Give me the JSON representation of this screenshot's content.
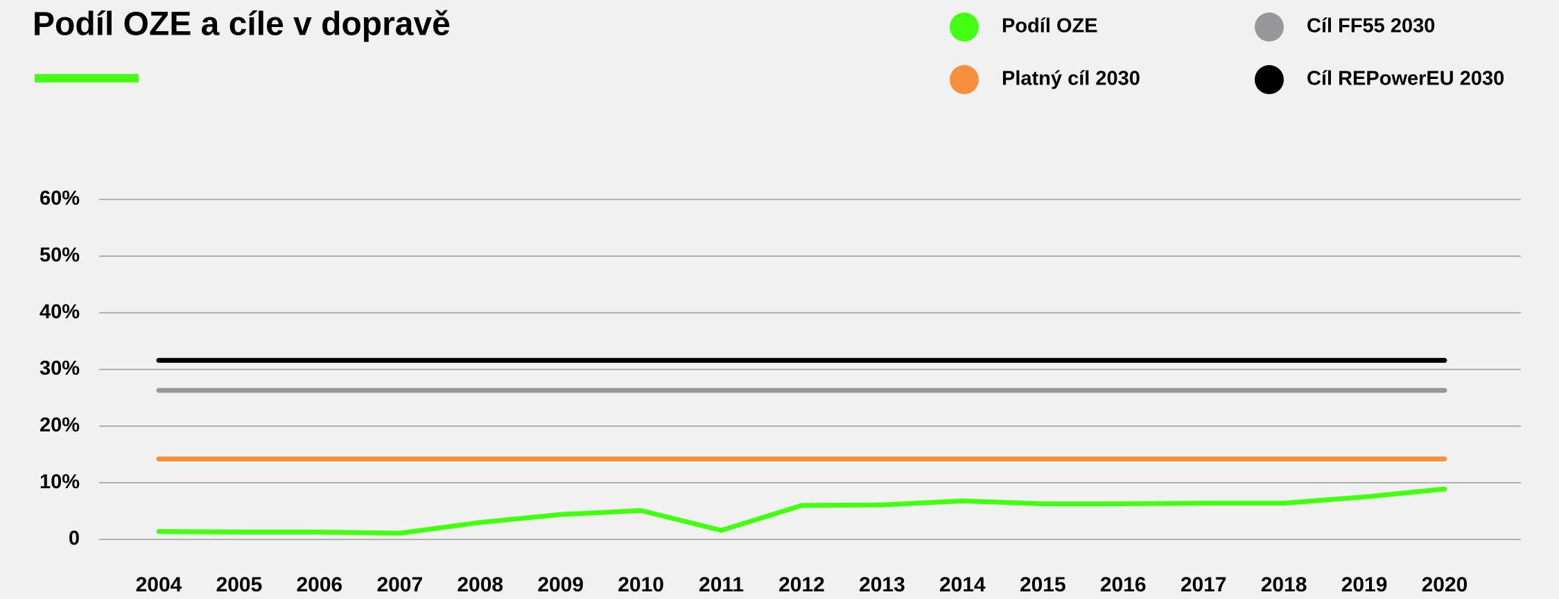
{
  "chart_data": {
    "type": "line",
    "title": "Podíl OZE a cíle v dopravě",
    "categories": [
      "2004",
      "2005",
      "2006",
      "2007",
      "2008",
      "2009",
      "2010",
      "2011",
      "2012",
      "2013",
      "2014",
      "2015",
      "2016",
      "2017",
      "2018",
      "2019",
      "2020"
    ],
    "series": [
      {
        "name": "Podíl OZE",
        "color": "#44ff12",
        "values": [
          1.4,
          1.3,
          1.3,
          1.1,
          3.0,
          4.4,
          5.1,
          1.6,
          6.0,
          6.1,
          6.8,
          6.3,
          6.3,
          6.4,
          6.4,
          7.5,
          8.9
        ]
      },
      {
        "name": "Platný cíl 2030",
        "color": "#f58f3c",
        "values": [
          14.2,
          14.2,
          14.2,
          14.2,
          14.2,
          14.2,
          14.2,
          14.2,
          14.2,
          14.2,
          14.2,
          14.2,
          14.2,
          14.2,
          14.2,
          14.2,
          14.2
        ]
      },
      {
        "name": "Cíl FF55 2030",
        "color": "#98989a",
        "values": [
          26.3,
          26.3,
          26.3,
          26.3,
          26.3,
          26.3,
          26.3,
          26.3,
          26.3,
          26.3,
          26.3,
          26.3,
          26.3,
          26.3,
          26.3,
          26.3,
          26.3
        ]
      },
      {
        "name": "Cíl REPowerEU 2030",
        "color": "#000000",
        "values": [
          31.6,
          31.6,
          31.6,
          31.6,
          31.6,
          31.6,
          31.6,
          31.6,
          31.6,
          31.6,
          31.6,
          31.6,
          31.6,
          31.6,
          31.6,
          31.6,
          31.6
        ]
      }
    ],
    "ylim": [
      0,
      60
    ],
    "yticks": [
      0,
      {
        "value": 10,
        "label": "10%"
      },
      {
        "value": 20,
        "label": "20%"
      },
      {
        "value": 30,
        "label": "30%"
      },
      {
        "value": 40,
        "label": "40%"
      },
      {
        "value": 50,
        "label": "50%"
      },
      {
        "value": 60,
        "label": "60%"
      }
    ],
    "grid": true
  }
}
